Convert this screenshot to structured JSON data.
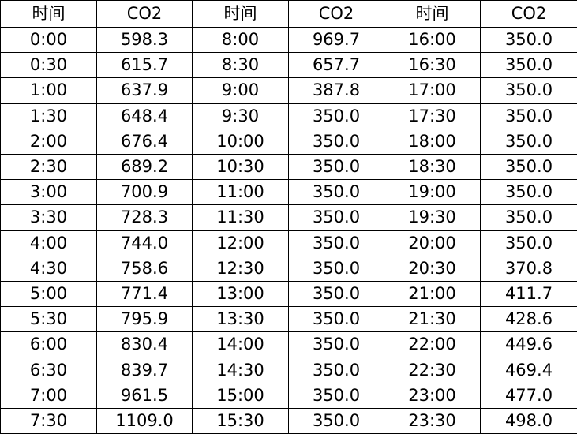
{
  "headers": [
    "时间",
    "CO2",
    "时间",
    "CO2",
    "时间",
    "CO2"
  ],
  "rows": [
    [
      "0:00",
      "598.3",
      "8:00",
      "969.7",
      "16:00",
      "350.0"
    ],
    [
      "0:30",
      "615.7",
      "8:30",
      "657.7",
      "16:30",
      "350.0"
    ],
    [
      "1:00",
      "637.9",
      "9:00",
      "387.8",
      "17:00",
      "350.0"
    ],
    [
      "1:30",
      "648.4",
      "9:30",
      "350.0",
      "17:30",
      "350.0"
    ],
    [
      "2:00",
      "676.4",
      "10:00",
      "350.0",
      "18:00",
      "350.0"
    ],
    [
      "2:30",
      "689.2",
      "10:30",
      "350.0",
      "18:30",
      "350.0"
    ],
    [
      "3:00",
      "700.9",
      "11:00",
      "350.0",
      "19:00",
      "350.0"
    ],
    [
      "3:30",
      "728.3",
      "11:30",
      "350.0",
      "19:30",
      "350.0"
    ],
    [
      "4:00",
      "744.0",
      "12:00",
      "350.0",
      "20:00",
      "350.0"
    ],
    [
      "4:30",
      "758.6",
      "12:30",
      "350.0",
      "20:30",
      "370.8"
    ],
    [
      "5:00",
      "771.4",
      "13:00",
      "350.0",
      "21:00",
      "411.7"
    ],
    [
      "5:30",
      "795.9",
      "13:30",
      "350.0",
      "21:30",
      "428.6"
    ],
    [
      "6:00",
      "830.4",
      "14:00",
      "350.0",
      "22:00",
      "449.6"
    ],
    [
      "6:30",
      "839.7",
      "14:30",
      "350.0",
      "22:30",
      "469.4"
    ],
    [
      "7:00",
      "961.5",
      "15:00",
      "350.0",
      "23:00",
      "477.0"
    ],
    [
      "7:30",
      "1109.0",
      "15:30",
      "350.0",
      "23:30",
      "498.0"
    ]
  ]
}
